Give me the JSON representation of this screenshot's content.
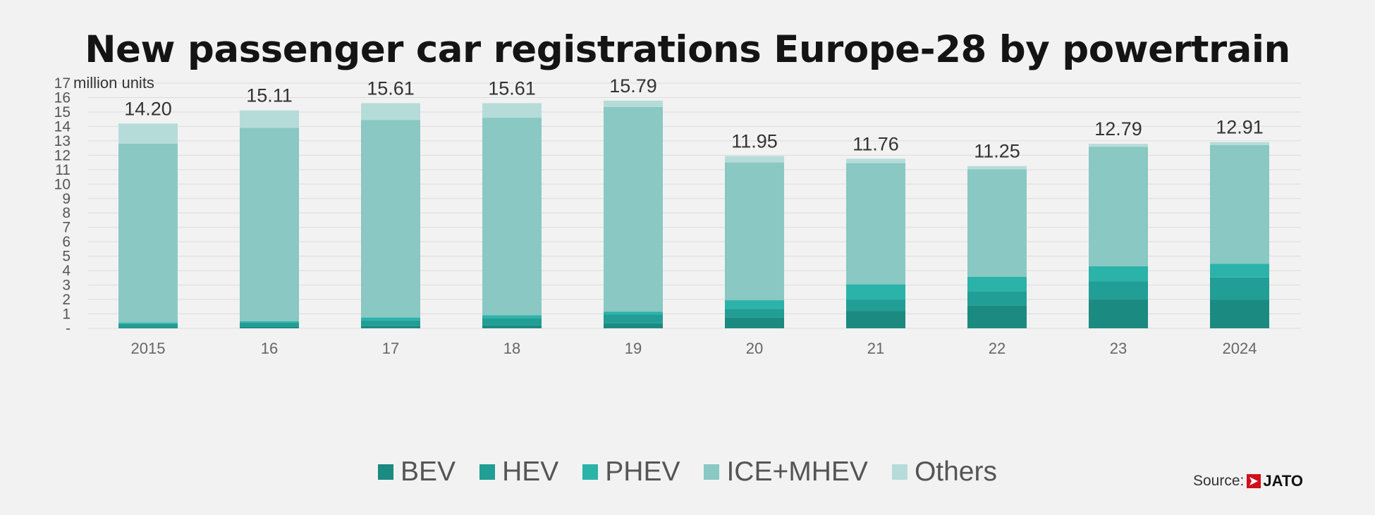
{
  "title": "New passenger car registrations Europe-28 by powertrain",
  "source_label": "Source:",
  "source_logo_text": "JATO",
  "colors": {
    "BEV": "#1b8a80",
    "HEV": "#219e95",
    "PHEV": "#2bb3aa",
    "ICE+MHEV": "#89c8c3",
    "Others": "#b6dcd9",
    "grid": "#dcdcdc",
    "text": "#444444"
  },
  "chart_data": {
    "type": "bar",
    "stacked": true,
    "title": "New passenger car registrations Europe-28 by powertrain",
    "ylabel": "million units",
    "ylim": [
      0,
      17
    ],
    "yticks": [
      "-",
      "1",
      "2",
      "3",
      "4",
      "5",
      "6",
      "7",
      "8",
      "9",
      "10",
      "11",
      "12",
      "13",
      "14",
      "15",
      "16",
      "17"
    ],
    "grid": true,
    "legend_position": "bottom",
    "categories": [
      "2015",
      "16",
      "17",
      "18",
      "19",
      "20",
      "21",
      "22",
      "23",
      "2024"
    ],
    "totals": [
      "14.20",
      "15.11",
      "15.61",
      "15.61",
      "15.79",
      "11.95",
      "11.76",
      "11.25",
      "12.79",
      "12.91"
    ],
    "series": [
      {
        "name": "BEV",
        "values": [
          0.08,
          0.1,
          0.15,
          0.2,
          0.35,
          0.75,
          1.2,
          1.58,
          2.0,
          1.98
        ]
      },
      {
        "name": "HEV",
        "values": [
          0.22,
          0.3,
          0.4,
          0.5,
          0.6,
          0.6,
          0.8,
          1.0,
          1.25,
          1.55
        ]
      },
      {
        "name": "PHEV",
        "values": [
          0.1,
          0.1,
          0.2,
          0.2,
          0.2,
          0.6,
          1.05,
          1.0,
          1.05,
          0.95
        ]
      },
      {
        "name": "ICE+MHEV",
        "values": [
          12.4,
          13.4,
          13.7,
          13.7,
          14.2,
          9.55,
          8.4,
          7.45,
          8.29,
          8.23
        ]
      },
      {
        "name": "Others",
        "values": [
          1.4,
          1.21,
          1.16,
          1.01,
          0.44,
          0.45,
          0.31,
          0.22,
          0.2,
          0.2
        ]
      }
    ]
  }
}
